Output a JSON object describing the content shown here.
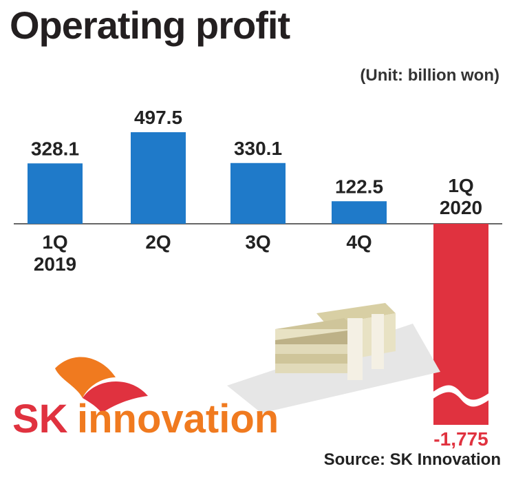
{
  "header": {
    "title": "Operating profit",
    "unit": "(Unit: billion won)"
  },
  "footer": {
    "source": "Source: SK Innovation"
  },
  "logo": {
    "text": "SK innovation"
  },
  "colors": {
    "positive": "#1f7ac9",
    "negative": "#e0323f",
    "logo_orange": "#f07a1f",
    "logo_red": "#e0323f"
  },
  "chart_data": {
    "type": "bar",
    "categories": [
      [
        "1Q",
        "2019"
      ],
      [
        "2Q"
      ],
      [
        "3Q"
      ],
      [
        "4Q"
      ],
      [
        "1Q",
        "2020"
      ]
    ],
    "values": [
      328.1,
      497.5,
      330.1,
      122.5,
      -1775
    ],
    "value_labels": [
      "328.1",
      "497.5",
      "330.1",
      "122.5",
      "-1,775"
    ],
    "title": "Operating profit",
    "unit": "billion won",
    "axis_break": true
  }
}
